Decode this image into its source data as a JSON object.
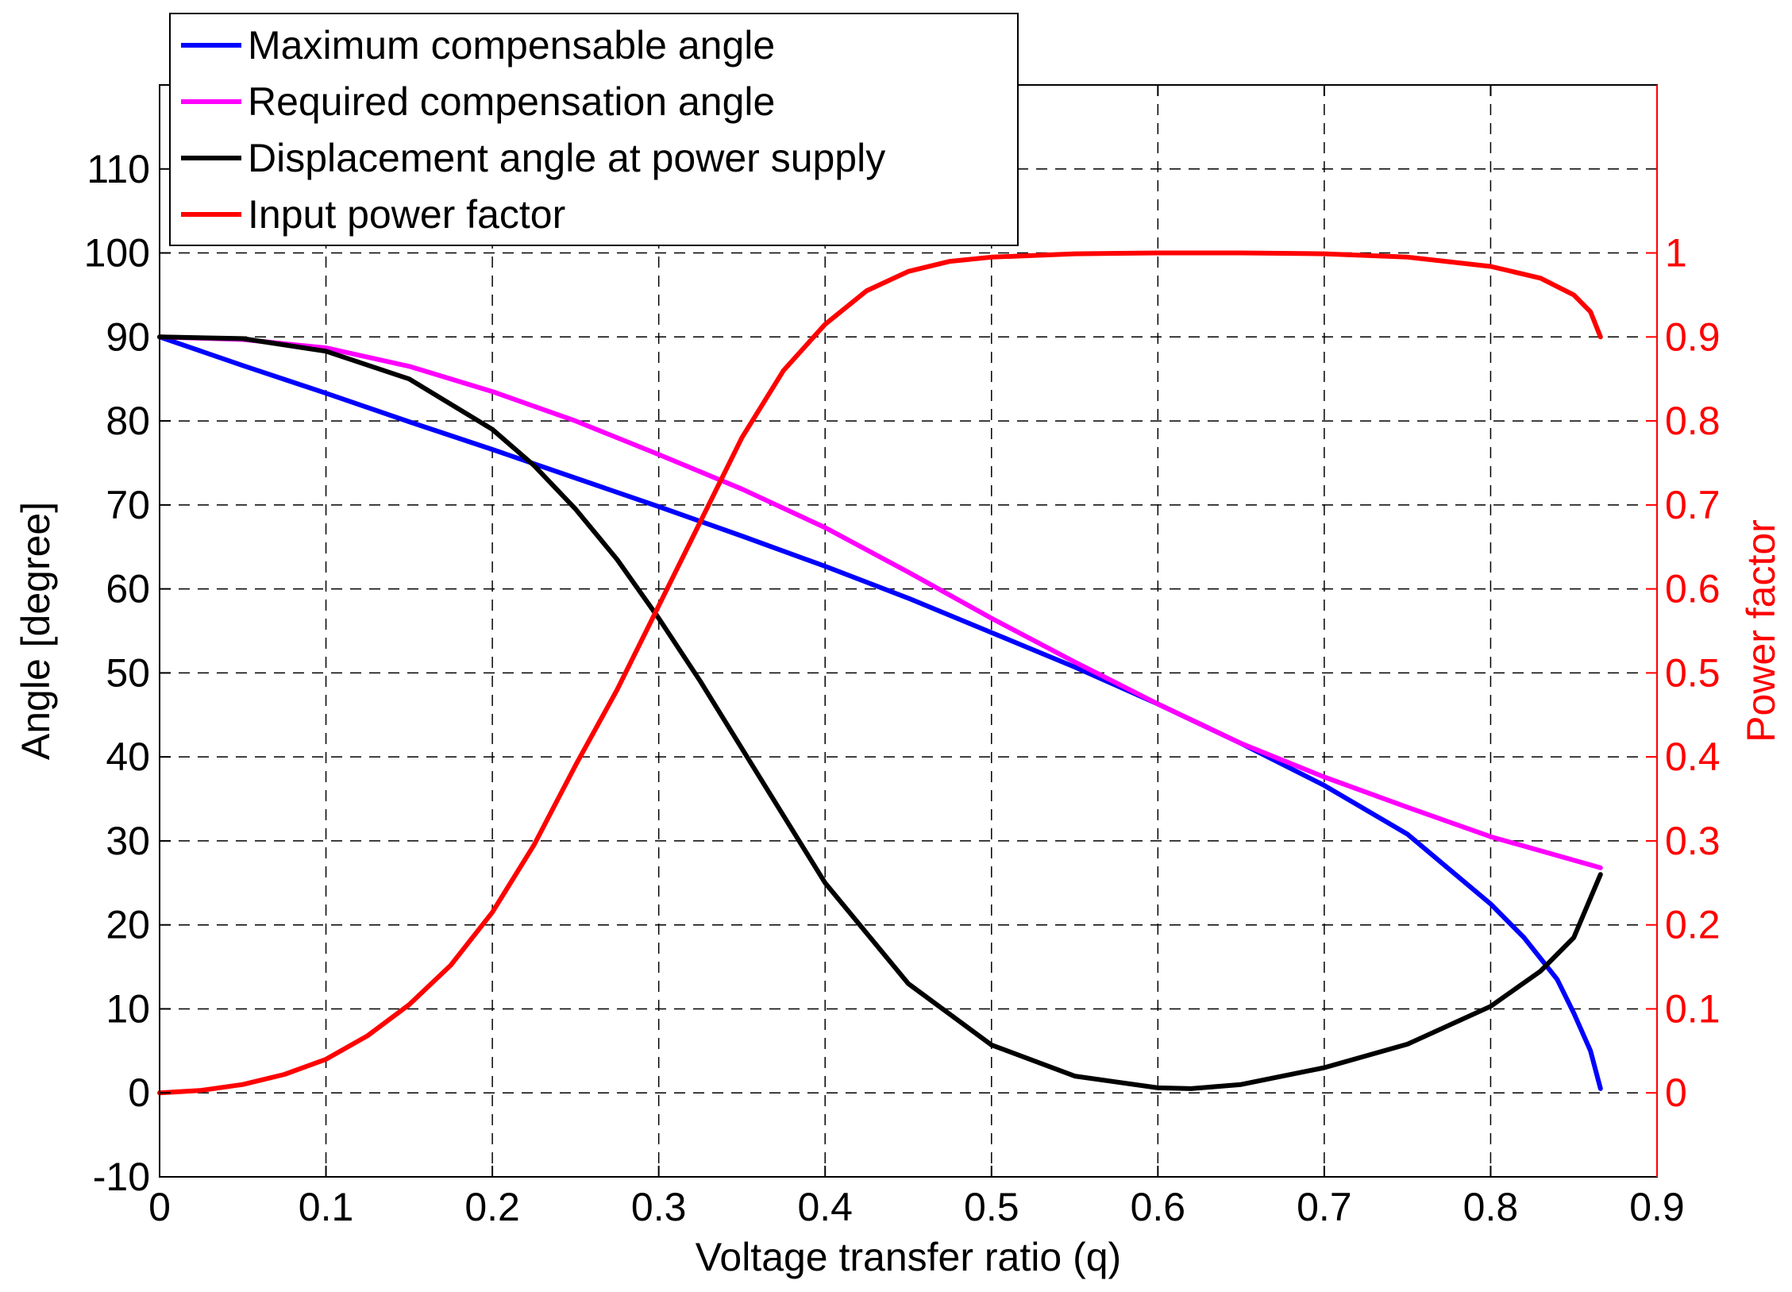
{
  "chart_data": {
    "type": "line",
    "title": "",
    "xlabel": "Voltage transfer ratio (q)",
    "ylabel": "Angle [degree]",
    "y2label": "Power factor",
    "xlim": [
      0,
      0.9
    ],
    "ylim": [
      -10,
      120
    ],
    "y2lim": [
      -0.1,
      1.2
    ],
    "grid": true,
    "legend_position": "top-left",
    "colors": {
      "max_comp": "#0000ff",
      "req_comp": "#ff00ff",
      "displacement": "#000000",
      "power_factor": "#ff0000",
      "right_axis": "#ff0000"
    },
    "x_ticks": [
      "0",
      "0.1",
      "0.2",
      "0.3",
      "0.4",
      "0.5",
      "0.6",
      "0.7",
      "0.8",
      "0.9"
    ],
    "y_ticks": [
      "-10",
      "0",
      "10",
      "20",
      "30",
      "40",
      "50",
      "60",
      "70",
      "80",
      "90",
      "100",
      "110"
    ],
    "y2_ticks": [
      "0",
      "0.1",
      "0.2",
      "0.3",
      "0.4",
      "0.5",
      "0.6",
      "0.7",
      "0.8",
      "0.9",
      "1"
    ],
    "series": [
      {
        "name": "Maximum compensable angle",
        "axis": "left",
        "x": [
          0,
          0.05,
          0.1,
          0.15,
          0.2,
          0.25,
          0.3,
          0.35,
          0.4,
          0.45,
          0.5,
          0.55,
          0.6,
          0.65,
          0.7,
          0.75,
          0.8,
          0.82,
          0.84,
          0.85,
          0.86,
          0.866
        ],
        "y": [
          90,
          86.6,
          83.3,
          79.9,
          76.6,
          73.2,
          69.8,
          66.3,
          62.7,
          58.9,
          54.8,
          50.7,
          46.3,
          41.6,
          36.6,
          30.8,
          22.5,
          18.5,
          13.5,
          9.5,
          5,
          0.5
        ]
      },
      {
        "name": "Required compensation angle",
        "axis": "left",
        "x": [
          0,
          0.05,
          0.1,
          0.15,
          0.2,
          0.25,
          0.3,
          0.35,
          0.4,
          0.45,
          0.5,
          0.55,
          0.6,
          0.65,
          0.7,
          0.75,
          0.8,
          0.866
        ],
        "y": [
          90,
          89.7,
          88.7,
          86.5,
          83.5,
          80,
          76,
          71.9,
          67.3,
          62,
          56.5,
          51.3,
          46.3,
          41.6,
          37.6,
          34,
          30.5,
          26.8
        ]
      },
      {
        "name": "Displacement angle at power supply",
        "axis": "left",
        "x": [
          0,
          0.05,
          0.1,
          0.15,
          0.2,
          0.225,
          0.25,
          0.275,
          0.3,
          0.325,
          0.35,
          0.4,
          0.45,
          0.5,
          0.55,
          0.6,
          0.62,
          0.65,
          0.7,
          0.75,
          0.8,
          0.83,
          0.85,
          0.866
        ],
        "y": [
          90,
          89.8,
          88.3,
          85,
          79,
          74.7,
          69.5,
          63.5,
          56.5,
          49,
          41,
          25,
          13,
          5.7,
          2,
          0.6,
          0.5,
          1,
          3,
          5.8,
          10.3,
          14.5,
          18.5,
          26
        ]
      },
      {
        "name": "Input power factor",
        "axis": "right",
        "x": [
          0,
          0.025,
          0.05,
          0.075,
          0.1,
          0.125,
          0.15,
          0.175,
          0.2,
          0.225,
          0.25,
          0.275,
          0.3,
          0.325,
          0.35,
          0.375,
          0.4,
          0.425,
          0.45,
          0.475,
          0.5,
          0.55,
          0.6,
          0.65,
          0.7,
          0.75,
          0.8,
          0.83,
          0.85,
          0.86,
          0.866
        ],
        "y": [
          0,
          0.003,
          0.01,
          0.022,
          0.04,
          0.068,
          0.105,
          0.152,
          0.215,
          0.295,
          0.39,
          0.48,
          0.58,
          0.68,
          0.78,
          0.86,
          0.915,
          0.955,
          0.978,
          0.99,
          0.995,
          0.999,
          1,
          1,
          0.999,
          0.995,
          0.984,
          0.97,
          0.95,
          0.93,
          0.9
        ]
      }
    ]
  }
}
